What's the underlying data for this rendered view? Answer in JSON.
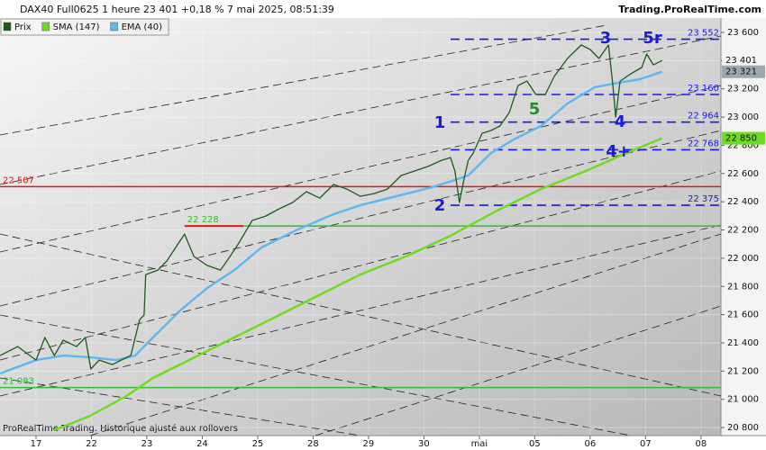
{
  "header": {
    "title": "DAX40 Full0625 1 heure 23 401 +0,18 % 7 mai 2025, 08:51:39",
    "site": "Trading.ProRealTime.com"
  },
  "footer": "ProRealTime Trading. Historique ajusté aux rollovers",
  "chart_data": {
    "type": "line",
    "xlim": [
      -0.65,
      12.36
    ],
    "xticks": [
      {
        "value": 0,
        "label": "17"
      },
      {
        "value": 1,
        "label": "22"
      },
      {
        "value": 2,
        "label": "23"
      },
      {
        "value": 3,
        "label": "24"
      },
      {
        "value": 4,
        "label": "25"
      },
      {
        "value": 5,
        "label": "28"
      },
      {
        "value": 6,
        "label": "29"
      },
      {
        "value": 7,
        "label": "30"
      },
      {
        "value": 8,
        "label": "mai"
      },
      {
        "value": 9,
        "label": "05"
      },
      {
        "value": 10,
        "label": "06"
      },
      {
        "value": 11,
        "label": "07"
      },
      {
        "value": 12,
        "label": "08"
      }
    ],
    "ylim": [
      20743,
      23651
    ],
    "yticks": [
      {
        "value": 20800,
        "label": "20 800"
      },
      {
        "value": 21000,
        "label": "21 000"
      },
      {
        "value": 21200,
        "label": "21 200"
      },
      {
        "value": 21400,
        "label": "21 400"
      },
      {
        "value": 21600,
        "label": "21 600"
      },
      {
        "value": 21800,
        "label": "21 800"
      },
      {
        "value": 22000,
        "label": "22 000"
      },
      {
        "value": 22200,
        "label": "22 200"
      },
      {
        "value": 22400,
        "label": "22 400"
      },
      {
        "value": 22600,
        "label": "22 600"
      },
      {
        "value": 22800,
        "label": "22 800"
      },
      {
        "value": 23000,
        "label": "23 000"
      },
      {
        "value": 23200,
        "label": "23 200"
      },
      {
        "value": 23400,
        "label": "23 400"
      },
      {
        "value": 23600,
        "label": "23 600"
      }
    ],
    "series": [
      {
        "name": "Prix",
        "color": "#1e5a1e",
        "badge": "23 401",
        "badge_color": "#f4f4f4",
        "x": [
          -0.65,
          -0.33,
          0,
          0.16,
          0.33,
          0.49,
          0.73,
          0.89,
          0.99,
          1.14,
          1.38,
          1.54,
          1.71,
          1.87,
          1.95,
          1.98,
          2.2,
          2.36,
          2.52,
          2.68,
          2.85,
          3.09,
          3.33,
          3.5,
          3.66,
          3.9,
          4.15,
          4.39,
          4.63,
          4.88,
          5.12,
          5.37,
          5.61,
          5.85,
          6.1,
          6.34,
          6.59,
          6.83,
          7.07,
          7.32,
          7.48,
          7.56,
          7.64,
          7.72,
          7.8,
          7.89,
          8.05,
          8.21,
          8.37,
          8.54,
          8.7,
          8.86,
          9.02,
          9.19,
          9.35,
          9.59,
          9.84,
          10.0,
          10.16,
          10.33,
          10.41,
          10.46,
          10.54,
          10.73,
          10.93,
          11.02,
          11.14,
          11.3
        ],
        "values": [
          21310,
          21374,
          21278,
          21438,
          21310,
          21419,
          21374,
          21438,
          21215,
          21278,
          21246,
          21278,
          21310,
          21565,
          21597,
          21884,
          21916,
          21980,
          22076,
          22171,
          22012,
          21948,
          21916,
          22012,
          22107,
          22267,
          22299,
          22350,
          22395,
          22471,
          22426,
          22522,
          22490,
          22439,
          22458,
          22490,
          22586,
          22618,
          22650,
          22694,
          22713,
          22618,
          22395,
          22554,
          22694,
          22745,
          22885,
          22905,
          22937,
          23032,
          23223,
          23255,
          23160,
          23160,
          23287,
          23415,
          23511,
          23479,
          23415,
          23511,
          23223,
          23000,
          23255,
          23306,
          23351,
          23447,
          23370,
          23401
        ]
      },
      {
        "name": "SMA (147)",
        "color": "#6cdc1e",
        "badge": "22 850",
        "badge_color": "#6cdc1e",
        "x": [
          0.33,
          0.98,
          1.63,
          2.11,
          2.6,
          3.41,
          4.23,
          5.04,
          5.85,
          6.67,
          7.48,
          8.29,
          9.11,
          9.92,
          10.73,
          11.3
        ],
        "values": [
          20781,
          20883,
          21023,
          21151,
          21246,
          21406,
          21565,
          21725,
          21884,
          22012,
          22159,
          22331,
          22490,
          22618,
          22758,
          22850
        ]
      },
      {
        "name": "EMA (40)",
        "color": "#5bb8f0",
        "badge": "23 321",
        "badge_color": "#9aa8b2",
        "x": [
          -0.65,
          0,
          0.49,
          0.99,
          1.46,
          1.79,
          2.11,
          2.6,
          3.09,
          3.58,
          4.07,
          4.72,
          5.37,
          5.85,
          6.5,
          7.15,
          7.56,
          7.8,
          8.21,
          8.62,
          9.11,
          9.59,
          10.08,
          10.41,
          10.89,
          11.3
        ],
        "values": [
          21183,
          21278,
          21310,
          21297,
          21278,
          21310,
          21438,
          21629,
          21789,
          21916,
          22076,
          22203,
          22312,
          22375,
          22439,
          22503,
          22554,
          22586,
          22745,
          22841,
          22937,
          23096,
          23211,
          23236,
          23268,
          23321
        ]
      }
    ],
    "levels": [
      {
        "value": 22507,
        "label": "22 507",
        "color": "#e01818",
        "style": "solid"
      },
      {
        "value": 22228,
        "label": "22 228",
        "color": "#33bb33",
        "style": "solid",
        "from": 2.68,
        "start_color": "#e01818",
        "start_to": 3.74
      },
      {
        "value": 21083,
        "label": "21 083",
        "color": "#33bb33",
        "style": "solid"
      },
      {
        "value": 23552,
        "label": "23 552",
        "color": "#1a1ae0",
        "style": "dashed",
        "from": 7.48
      },
      {
        "value": 23160,
        "label": "23 160",
        "color": "#1a1ae0",
        "style": "dashed",
        "from": 7.48
      },
      {
        "value": 22964,
        "label": "22 964",
        "color": "#1a1ae0",
        "style": "dashed",
        "from": 7.48
      },
      {
        "value": 22768,
        "label": "22 768",
        "color": "#1a1ae0",
        "style": "dashed",
        "from": 7.48
      },
      {
        "value": 22375,
        "label": "22 375",
        "color": "#1a1ae0",
        "style": "dashed",
        "from": 7.48
      }
    ],
    "annotations": [
      {
        "text": "1",
        "color": "#1a1ae0"
      },
      {
        "text": "2",
        "color": "#1a1ae0"
      },
      {
        "text": "3",
        "color": "#1a1ae0"
      },
      {
        "text": "4",
        "color": "#1a1ae0"
      },
      {
        "text": "4+",
        "color": "#1a1ae0"
      },
      {
        "text": "5",
        "color": "#2a8a2a"
      },
      {
        "text": "5r",
        "color": "#1a1ae0"
      }
    ]
  }
}
